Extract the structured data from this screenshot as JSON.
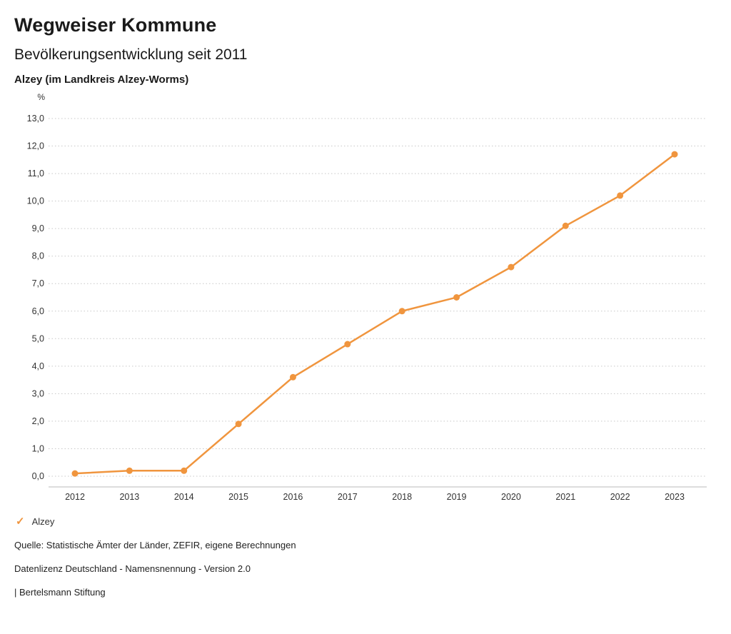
{
  "header": {
    "title": "Wegweiser Kommune",
    "subtitle": "Bevölkerungsentwicklung seit 2011",
    "region": "Alzey (im Landkreis Alzey-Worms)"
  },
  "chart_data": {
    "type": "line",
    "unit_label": "%",
    "categories": [
      "2012",
      "2013",
      "2014",
      "2015",
      "2016",
      "2017",
      "2018",
      "2019",
      "2020",
      "2021",
      "2022",
      "2023"
    ],
    "series": [
      {
        "name": "Alzey",
        "color": "#f0953e",
        "values": [
          0.1,
          0.2,
          0.2,
          1.9,
          3.6,
          4.8,
          6.0,
          6.5,
          7.6,
          9.1,
          10.2,
          11.7
        ]
      }
    ],
    "ylim": [
      0,
      13
    ],
    "ytick_step": 1,
    "decimal_separator": ",",
    "grid": "dotted horizontal lines",
    "legend_position": "bottom-left",
    "title": "Bevölkerungsentwicklung seit 2011",
    "xlabel": "",
    "ylabel": "%"
  },
  "legend": {
    "check_icon": "✓",
    "items": [
      {
        "label": "Alzey",
        "color": "#f0953e"
      }
    ]
  },
  "footer": {
    "source": "Quelle: Statistische Ämter der Länder, ZEFIR, eigene Berechnungen",
    "license": "Datenlizenz Deutschland - Namensnennung - Version 2.0",
    "attribution": "| Bertelsmann Stiftung"
  },
  "colors": {
    "accent": "#f0953e",
    "grid": "#c8c8c8",
    "axis_text": "#333333"
  }
}
